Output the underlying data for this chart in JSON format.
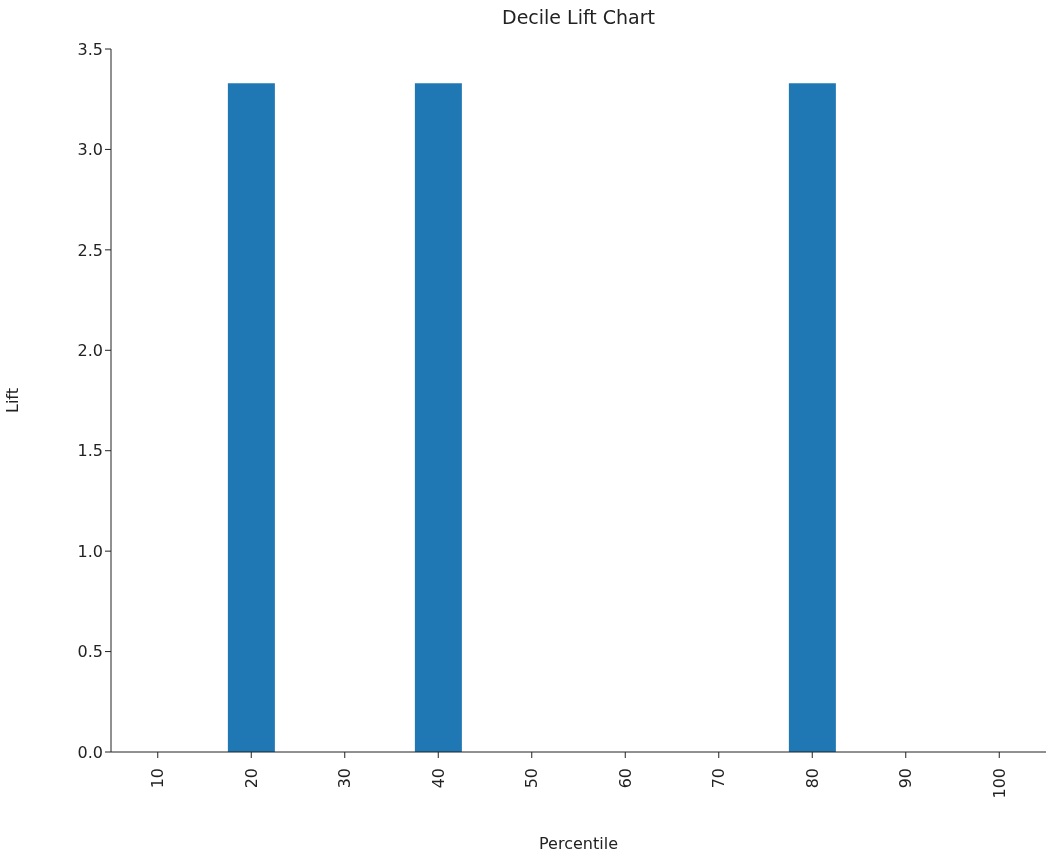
{
  "chart_data": {
    "type": "bar",
    "title": "Decile Lift Chart",
    "xlabel": "Percentile",
    "ylabel": "Lift",
    "categories": [
      "10",
      "20",
      "30",
      "40",
      "50",
      "60",
      "70",
      "80",
      "90",
      "100"
    ],
    "values": [
      0,
      3.33,
      0,
      3.33,
      0,
      0,
      0,
      3.33,
      0,
      0
    ],
    "color": "#1f77b4",
    "ylim": [
      0,
      3.5
    ],
    "yticks": [
      {
        "value": 0,
        "label": "0.0"
      },
      {
        "value": 0.5,
        "label": "0.5"
      },
      {
        "value": 1,
        "label": "1.0"
      },
      {
        "value": 1.5,
        "label": "1.5"
      },
      {
        "value": 2,
        "label": "2.0"
      },
      {
        "value": 2.5,
        "label": "2.5"
      },
      {
        "value": 3,
        "label": "3.0"
      },
      {
        "value": 3.5,
        "label": "3.5"
      }
    ],
    "grid": false
  }
}
